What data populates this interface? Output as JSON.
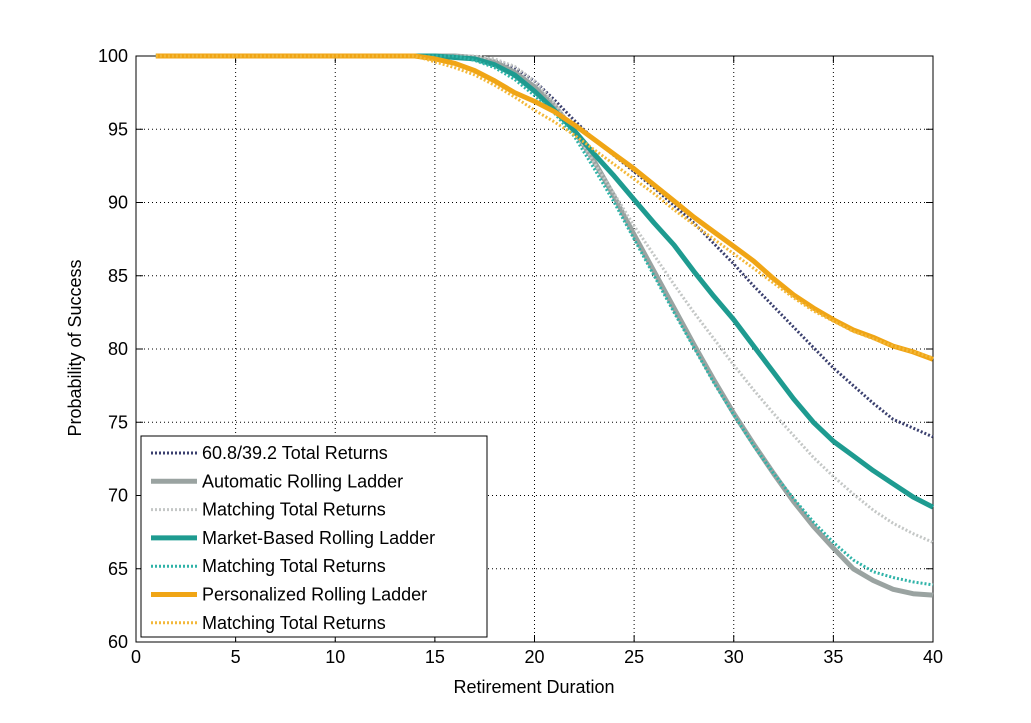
{
  "chart_data": {
    "type": "line",
    "xlabel": "Retirement Duration",
    "ylabel": "Probability of Success",
    "xlim": [
      0,
      40
    ],
    "ylim": [
      60,
      100
    ],
    "xticks": [
      0,
      5,
      10,
      15,
      20,
      25,
      30,
      35,
      40
    ],
    "yticks": [
      60,
      65,
      70,
      75,
      80,
      85,
      90,
      95,
      100
    ],
    "grid": true,
    "legend_position": "bottom-left",
    "series": [
      {
        "name": "60.8/39.2 Total Returns",
        "color": "#3a3f6e",
        "style": "dotted",
        "x": [
          1,
          10,
          15,
          16,
          17,
          18,
          19,
          20,
          21,
          22,
          23,
          24,
          25,
          26,
          27,
          28,
          29,
          30,
          31,
          32,
          33,
          34,
          35,
          36,
          37,
          38,
          39,
          40
        ],
        "y": [
          100,
          100,
          100,
          100,
          99.9,
          99.7,
          99.2,
          98.3,
          97.0,
          95.6,
          94.3,
          93.2,
          92.1,
          91.0,
          89.8,
          88.6,
          87.2,
          85.8,
          84.3,
          82.9,
          81.5,
          80.1,
          78.7,
          77.5,
          76.3,
          75.2,
          74.6,
          74.0
        ]
      },
      {
        "name": "Automatic Rolling Ladder",
        "color": "#9aa3a1",
        "style": "solid",
        "x": [
          1,
          10,
          15,
          16,
          17,
          18,
          19,
          20,
          21,
          22,
          23,
          24,
          25,
          26,
          27,
          28,
          29,
          30,
          31,
          32,
          33,
          34,
          35,
          36,
          37,
          38,
          39,
          40
        ],
        "y": [
          100,
          100,
          100,
          100,
          99.9,
          99.6,
          98.9,
          97.9,
          96.6,
          94.9,
          92.8,
          90.4,
          87.8,
          85.3,
          82.8,
          80.3,
          77.9,
          75.6,
          73.5,
          71.5,
          69.6,
          67.9,
          66.4,
          65.0,
          64.2,
          63.6,
          63.3,
          63.2
        ]
      },
      {
        "name": "Matching Total Returns",
        "color": "#c4c7c6",
        "style": "dotted",
        "x": [
          1,
          10,
          15,
          16,
          17,
          18,
          19,
          20,
          21,
          22,
          23,
          24,
          25,
          26,
          27,
          28,
          29,
          30,
          31,
          32,
          33,
          34,
          35,
          36,
          37,
          38,
          39,
          40
        ],
        "y": [
          100,
          100,
          100,
          100,
          100,
          99.8,
          99.3,
          98.3,
          96.8,
          94.9,
          92.7,
          90.6,
          88.4,
          86.4,
          84.4,
          82.5,
          80.7,
          78.9,
          77.2,
          75.6,
          74.1,
          72.6,
          71.3,
          70.1,
          69.0,
          68.1,
          67.4,
          66.8
        ]
      },
      {
        "name": "Market-Based Rolling Ladder",
        "color": "#1e9b90",
        "style": "solid",
        "x": [
          1,
          10,
          15,
          16,
          17,
          18,
          19,
          20,
          21,
          22,
          23,
          24,
          25,
          26,
          27,
          28,
          29,
          30,
          31,
          32,
          33,
          34,
          35,
          36,
          37,
          38,
          39,
          40
        ],
        "y": [
          100,
          100,
          100,
          99.9,
          99.8,
          99.4,
          98.7,
          97.6,
          96.3,
          94.9,
          93.3,
          91.8,
          90.2,
          88.6,
          87.1,
          85.3,
          83.6,
          82.0,
          80.2,
          78.4,
          76.6,
          75.0,
          73.7,
          72.7,
          71.7,
          70.8,
          69.9,
          69.2
        ]
      },
      {
        "name": "Matching Total Returns",
        "color": "#2fb3a8",
        "style": "dotted",
        "x": [
          1,
          10,
          15,
          16,
          17,
          18,
          19,
          20,
          21,
          22,
          23,
          24,
          25,
          26,
          27,
          28,
          29,
          30,
          31,
          32,
          33,
          34,
          35,
          36,
          37,
          38,
          39,
          40
        ],
        "y": [
          100,
          100,
          100,
          100,
          99.7,
          99.2,
          98.4,
          97.3,
          96.1,
          94.5,
          92.3,
          90.0,
          87.5,
          85.0,
          82.5,
          80.1,
          77.7,
          75.5,
          73.4,
          71.5,
          69.8,
          68.2,
          66.8,
          65.6,
          64.8,
          64.4,
          64.1,
          63.9
        ]
      },
      {
        "name": "Personalized Rolling Ladder",
        "color": "#f0a515",
        "style": "solid",
        "x": [
          1,
          10,
          14,
          15,
          16,
          17,
          18,
          19,
          20,
          21,
          22,
          23,
          24,
          25,
          26,
          27,
          28,
          29,
          30,
          31,
          32,
          33,
          34,
          35,
          36,
          37,
          38,
          39,
          40
        ],
        "y": [
          100,
          100,
          100,
          99.8,
          99.5,
          99.0,
          98.3,
          97.5,
          96.9,
          96.2,
          95.3,
          94.3,
          93.3,
          92.3,
          91.2,
          90.1,
          89.0,
          88.0,
          87.0,
          86.0,
          84.8,
          83.7,
          82.8,
          82.0,
          81.3,
          80.8,
          80.2,
          79.8,
          79.3
        ]
      },
      {
        "name": "Matching Total Returns",
        "color": "#f3b83a",
        "style": "dotted",
        "x": [
          1,
          10,
          14,
          15,
          16,
          17,
          18,
          19,
          20,
          21,
          22,
          23,
          24,
          25,
          26,
          27,
          28,
          29,
          30,
          31,
          32,
          33,
          34,
          35,
          36,
          37,
          38,
          39,
          40
        ],
        "y": [
          100,
          100,
          100,
          99.6,
          99.2,
          98.7,
          98.0,
          97.2,
          96.3,
          95.5,
          94.6,
          93.6,
          92.6,
          91.6,
          90.6,
          89.5,
          88.5,
          87.5,
          86.5,
          85.5,
          84.5,
          83.5,
          82.6,
          81.9,
          81.2,
          80.7,
          80.2,
          79.8,
          79.4
        ]
      }
    ]
  }
}
